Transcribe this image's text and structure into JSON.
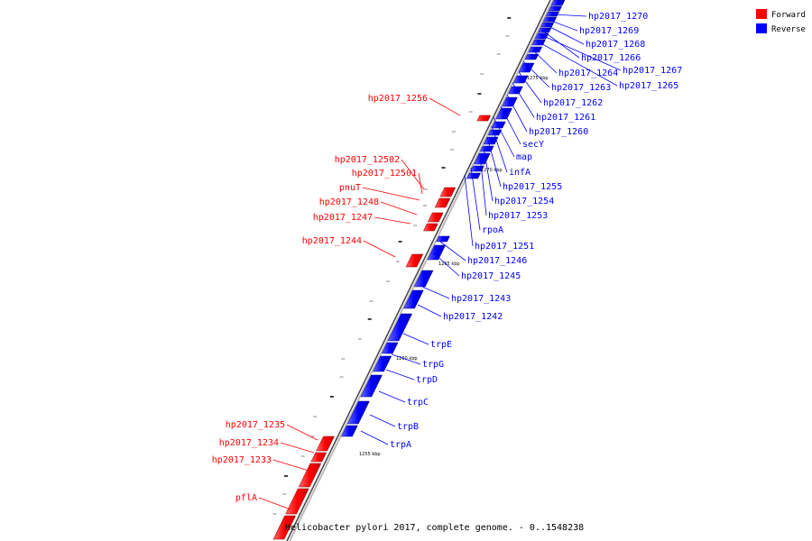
{
  "caption": "Helicobacter pylori 2017, complete genome. - 0..1548238",
  "legend": [
    {
      "label": "Forward",
      "color": "#ff0000"
    },
    {
      "label": "Reverse",
      "color": "#0000ff"
    }
  ],
  "colors": {
    "forward": "#ff0000",
    "reverse": "#0000ff",
    "backbone": "#888888"
  },
  "ticks": [
    "1275 kbp",
    "1270 kbp",
    "1265 kbp",
    "1260 kbp",
    "1255 kbp"
  ],
  "forward_labels": [
    "hp2017_1256",
    "hp2017_12502",
    "hp2017_12501",
    "pnuT",
    "hp2017_1248",
    "hp2017_1247",
    "hp2017_1244",
    "hp2017_1235",
    "hp2017_1234",
    "hp2017_1233",
    "pflA"
  ],
  "reverse_labels": [
    "hp2017_1270",
    "hp2017_1269",
    "hp2017_1268",
    "hp2017_1266",
    "hp2017_1264",
    "hp2017_1267",
    "hp2017_1263",
    "hp2017_1265",
    "hp2017_1262",
    "hp2017_1261",
    "hp2017_1260",
    "secY",
    "map",
    "infA",
    "hp2017_1255",
    "hp2017_1254",
    "hp2017_1253",
    "rpoA",
    "hp2017_1251",
    "hp2017_1246",
    "hp2017_1245",
    "hp2017_1243",
    "hp2017_1242",
    "trpE",
    "trpG",
    "trpD",
    "trpC",
    "trpB",
    "trpA"
  ]
}
